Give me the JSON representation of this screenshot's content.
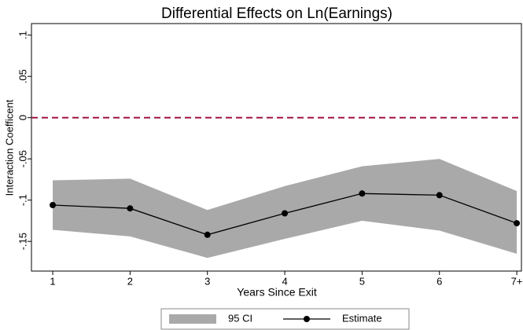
{
  "chart_data": {
    "type": "line",
    "title": "Differential Effects on Ln(Earnings)",
    "xlabel": "Years Since Exit",
    "ylabel": "Interaction Coefficent",
    "x": [
      1,
      2,
      3,
      4,
      5,
      6,
      7
    ],
    "xlim": [
      0.725,
      7.06
    ],
    "xticks": [
      1,
      2,
      3,
      4,
      5,
      6,
      {
        "value": 7,
        "label": "7+"
      }
    ],
    "ylim": [
      -0.186,
      0.114
    ],
    "yticks": [
      {
        "value": 0.1,
        "label": ".1"
      },
      {
        "value": 0.05,
        "label": ".05"
      },
      0,
      {
        "value": -0.05,
        "label": "-.05"
      },
      {
        "value": -0.1,
        "label": "-.1"
      },
      {
        "value": -0.15,
        "label": "-.15"
      }
    ],
    "reference_line": {
      "value": 0,
      "color": "#a0153e"
    },
    "legend": "bottom",
    "series": [
      {
        "name": "95 CI",
        "color": "#a9a9a9",
        "lower": [
          -0.136,
          -0.144,
          -0.17,
          -0.147,
          -0.125,
          -0.137,
          -0.165
        ],
        "upper": [
          -0.076,
          -0.074,
          -0.112,
          -0.083,
          -0.059,
          -0.05,
          -0.089
        ]
      },
      {
        "name": "Estimate",
        "color": "#000000",
        "values": [
          -0.106,
          -0.11,
          -0.142,
          -0.116,
          -0.092,
          -0.094,
          -0.128
        ]
      }
    ]
  }
}
